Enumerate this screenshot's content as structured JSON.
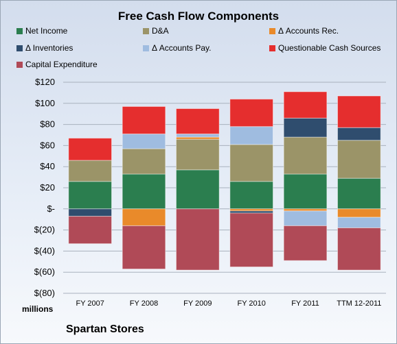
{
  "chart_data": {
    "type": "bar",
    "title": "Free Cash Flow Components",
    "ylabel": "millions",
    "footer": "Spartan Stores",
    "ylim": [
      -80,
      120
    ],
    "ytick_values": [
      -80,
      -60,
      -40,
      -20,
      0,
      20,
      40,
      60,
      80,
      100,
      120
    ],
    "ytick_labels": [
      "$(80)",
      "$(60)",
      "$(40)",
      "$(20)",
      "$-",
      "$20",
      "$40",
      "$60",
      "$80",
      "$100",
      "$120"
    ],
    "grid": true,
    "legend_position": "top",
    "categories": [
      "FY 2007",
      "FY 2008",
      "FY 2009",
      "FY 2010",
      "FY 2011",
      "TTM 12-2011"
    ],
    "series": [
      {
        "name": "Net Income",
        "color": "#2b7e4f",
        "values": [
          26,
          33,
          37,
          26,
          33,
          29
        ]
      },
      {
        "name": "D&A",
        "color": "#9b9468",
        "values": [
          20,
          24,
          29,
          35,
          35,
          36
        ]
      },
      {
        "name": "Δ Accounts Rec.",
        "color": "#e98a2a",
        "values": [
          0,
          -16,
          2,
          -2,
          -2,
          -8
        ]
      },
      {
        "name": "Δ Inventories",
        "color": "#2f4d6e",
        "values": [
          -7,
          0,
          0,
          -2,
          18,
          12
        ]
      },
      {
        "name": "Δ Accounts Pay.",
        "color": "#9fbce0",
        "values": [
          0,
          14,
          3,
          17,
          -14,
          -10
        ]
      },
      {
        "name": "Questionable Cash Sources",
        "color": "#e52e2e",
        "values": [
          21,
          26,
          24,
          26,
          25,
          30
        ]
      },
      {
        "name": "Capital Expenditure",
        "color": "#b04a57",
        "values": [
          -26,
          -41,
          -58,
          -51,
          -33,
          -40
        ]
      }
    ]
  }
}
